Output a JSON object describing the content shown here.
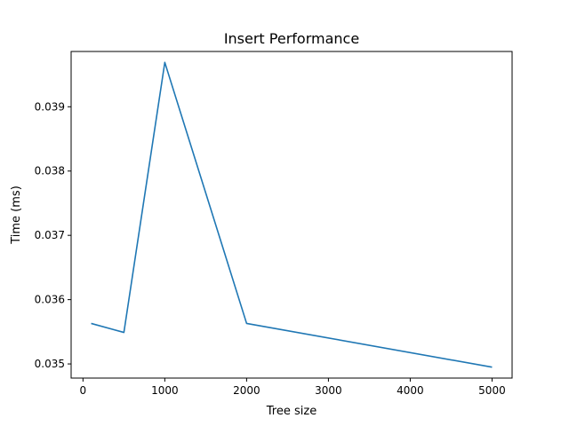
{
  "chart_data": {
    "type": "line",
    "title": "Insert Performance",
    "xlabel": "Tree size",
    "ylabel": "Time (ms)",
    "x": [
      100,
      500,
      1000,
      2000,
      5000
    ],
    "series": [
      {
        "values": [
          0.03563,
          0.03549,
          0.03969,
          0.03563,
          0.03495
        ],
        "color": "#1f77b4"
      }
    ],
    "xlim": [
      -145,
      5245
    ],
    "ylim": [
      0.03478,
      0.03986
    ],
    "xticks": [
      0,
      1000,
      2000,
      3000,
      4000,
      5000
    ],
    "xtick_labels": [
      "0",
      "1000",
      "2000",
      "3000",
      "4000",
      "5000"
    ],
    "yticks": [
      0.035,
      0.036,
      0.037,
      0.038,
      0.039
    ],
    "ytick_labels": [
      "0.035",
      "0.036",
      "0.037",
      "0.038",
      "0.039"
    ],
    "grid": false,
    "legend": "none"
  }
}
